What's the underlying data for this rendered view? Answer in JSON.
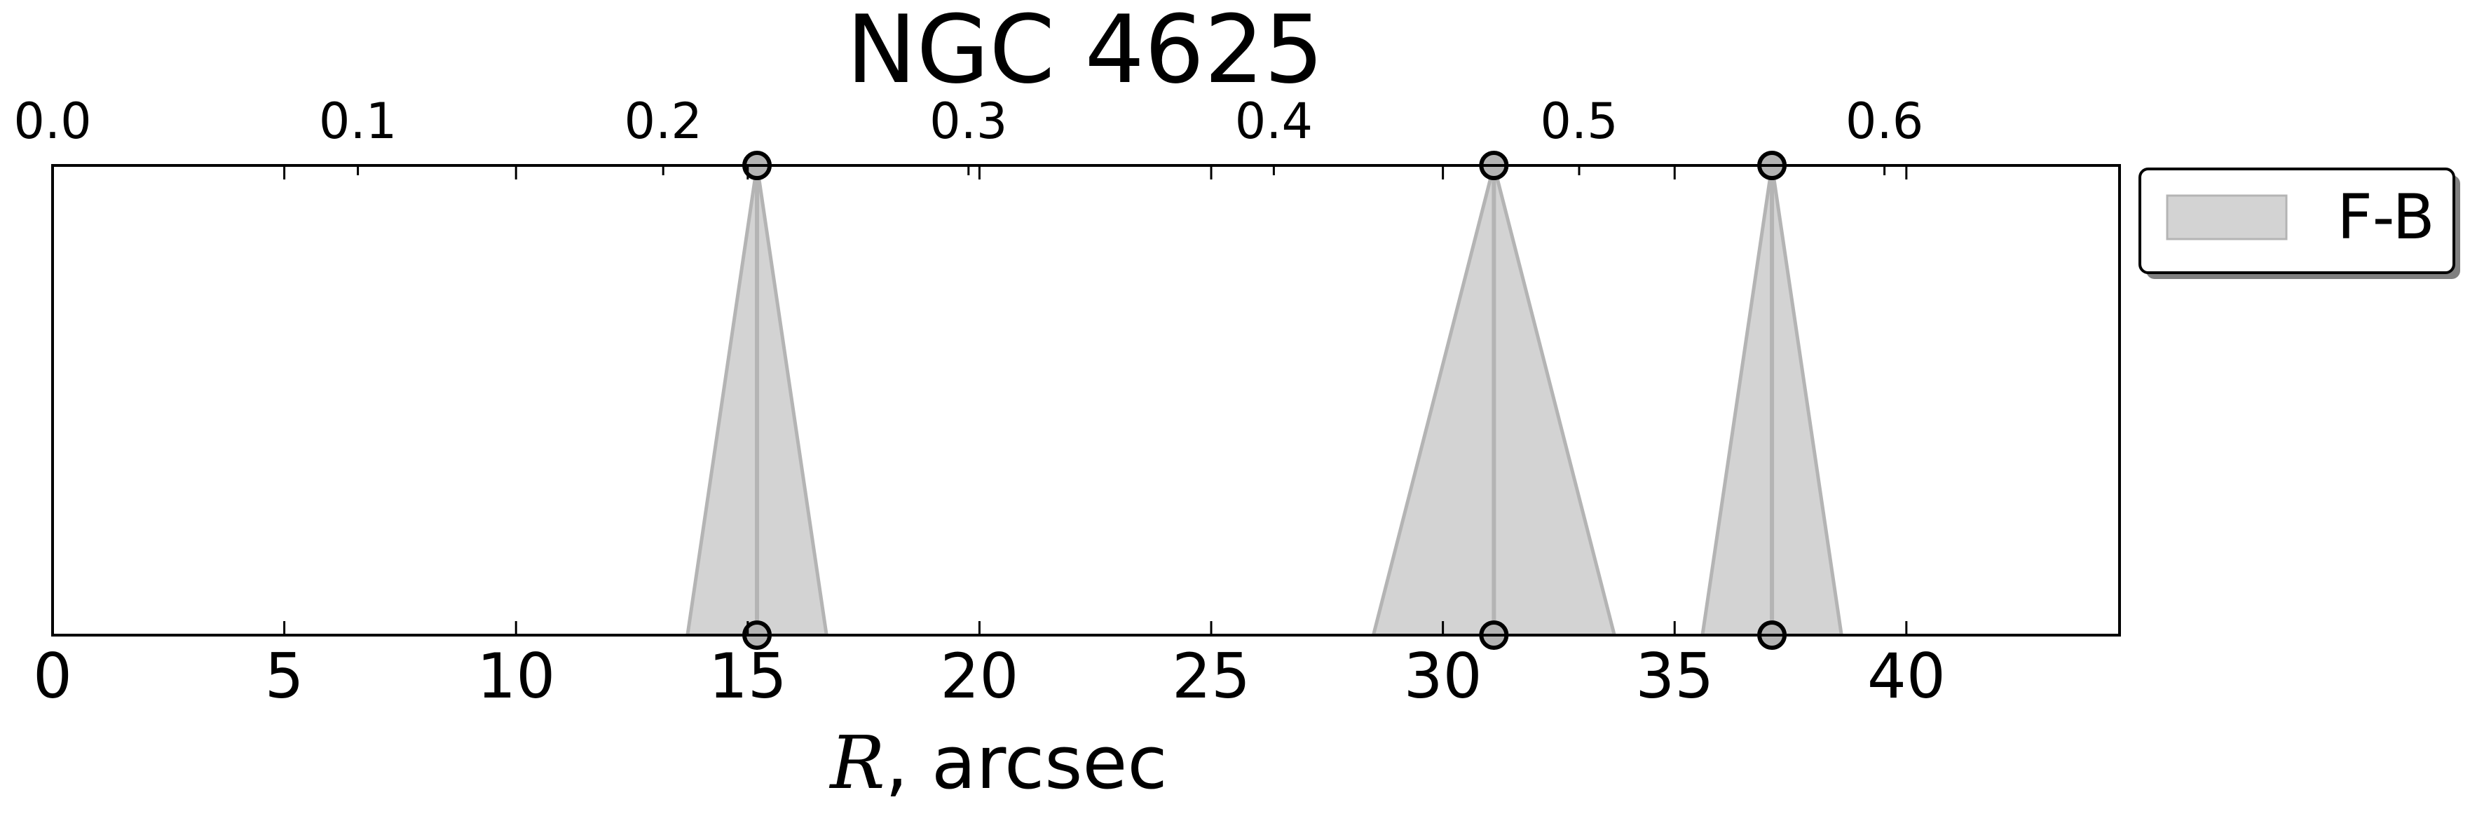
{
  "chart_data": {
    "type": "area",
    "title": "NGC 4625",
    "xlabel_symbol": "R",
    "xlabel_rest": ", arcsec",
    "xlim": [
      0,
      44.6
    ],
    "ylim": [
      0,
      1
    ],
    "xticks": [
      0,
      5,
      10,
      15,
      20,
      25,
      30,
      35,
      40
    ],
    "xtick_labels": [
      "0",
      "5",
      "10",
      "15",
      "20",
      "25",
      "30",
      "35",
      "40"
    ],
    "top_xlim": [
      0,
      0.677
    ],
    "top_xticks": [
      0.0,
      0.1,
      0.2,
      0.3,
      0.4,
      0.5,
      0.6
    ],
    "top_xtick_labels": [
      "0.0",
      "0.1",
      "0.2",
      "0.3",
      "0.4",
      "0.5",
      "0.6"
    ],
    "grid": false,
    "legend_position": "outside right, top",
    "series": [
      {
        "name": "F-B",
        "color": "#d3d3d3",
        "line_color": "#b4b4b4",
        "features": [
          {
            "x": 15.2,
            "x_left": 13.7,
            "x_right": 16.7
          },
          {
            "x": 31.1,
            "x_left": 28.5,
            "x_right": 33.7
          },
          {
            "x": 37.1,
            "x_left": 35.6,
            "x_right": 38.6
          }
        ]
      }
    ]
  }
}
